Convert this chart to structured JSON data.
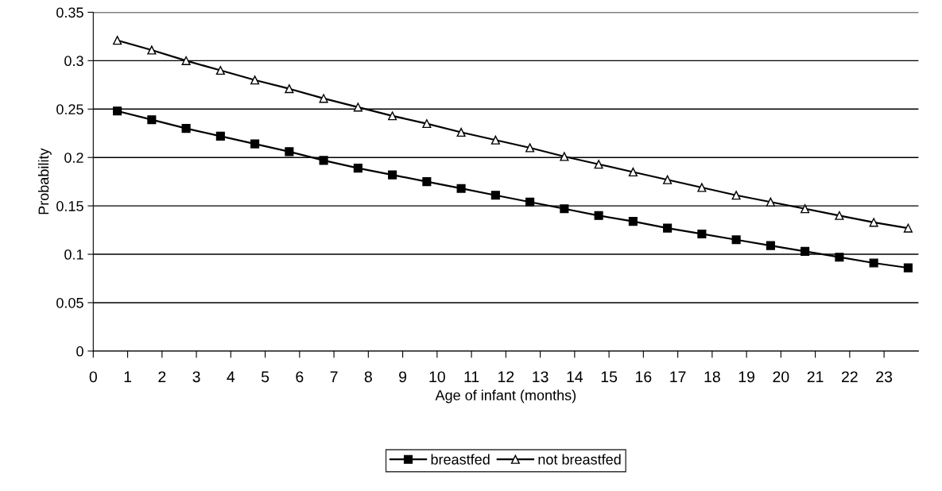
{
  "chart_data": {
    "type": "line",
    "xlabel": "Age of infant (months)",
    "ylabel": "Probability",
    "x": [
      0.7,
      1.7,
      2.7,
      3.7,
      4.7,
      5.7,
      6.7,
      7.7,
      8.7,
      9.7,
      10.7,
      11.7,
      12.7,
      13.7,
      14.7,
      15.7,
      16.7,
      17.7,
      18.7,
      19.7,
      20.7,
      21.7,
      22.7,
      23.7
    ],
    "series": [
      {
        "name": "breastfed",
        "color": "#000000",
        "marker": "square",
        "values": [
          0.248,
          0.239,
          0.23,
          0.222,
          0.214,
          0.206,
          0.197,
          0.189,
          0.182,
          0.175,
          0.168,
          0.161,
          0.154,
          0.147,
          0.14,
          0.134,
          0.127,
          0.121,
          0.115,
          0.109,
          0.103,
          0.097,
          0.091,
          0.086
        ]
      },
      {
        "name": "not breastfed",
        "color": "#000000",
        "marker": "triangle",
        "values": [
          0.321,
          0.311,
          0.3,
          0.29,
          0.28,
          0.271,
          0.261,
          0.252,
          0.243,
          0.235,
          0.226,
          0.218,
          0.21,
          0.201,
          0.193,
          0.185,
          0.177,
          0.169,
          0.161,
          0.154,
          0.147,
          0.14,
          0.133,
          0.127
        ]
      }
    ],
    "xlim": [
      0,
      24
    ],
    "xticks": [
      0,
      1,
      2,
      3,
      4,
      5,
      6,
      7,
      8,
      9,
      10,
      11,
      12,
      13,
      14,
      15,
      16,
      17,
      18,
      19,
      20,
      21,
      22,
      23
    ],
    "ylim": [
      0,
      0.35
    ],
    "yticks": [
      0,
      0.05,
      0.1,
      0.15,
      0.2,
      0.25,
      0.3,
      0.35
    ],
    "grid": "y",
    "legend": "bottom",
    "line_style": "solid"
  }
}
